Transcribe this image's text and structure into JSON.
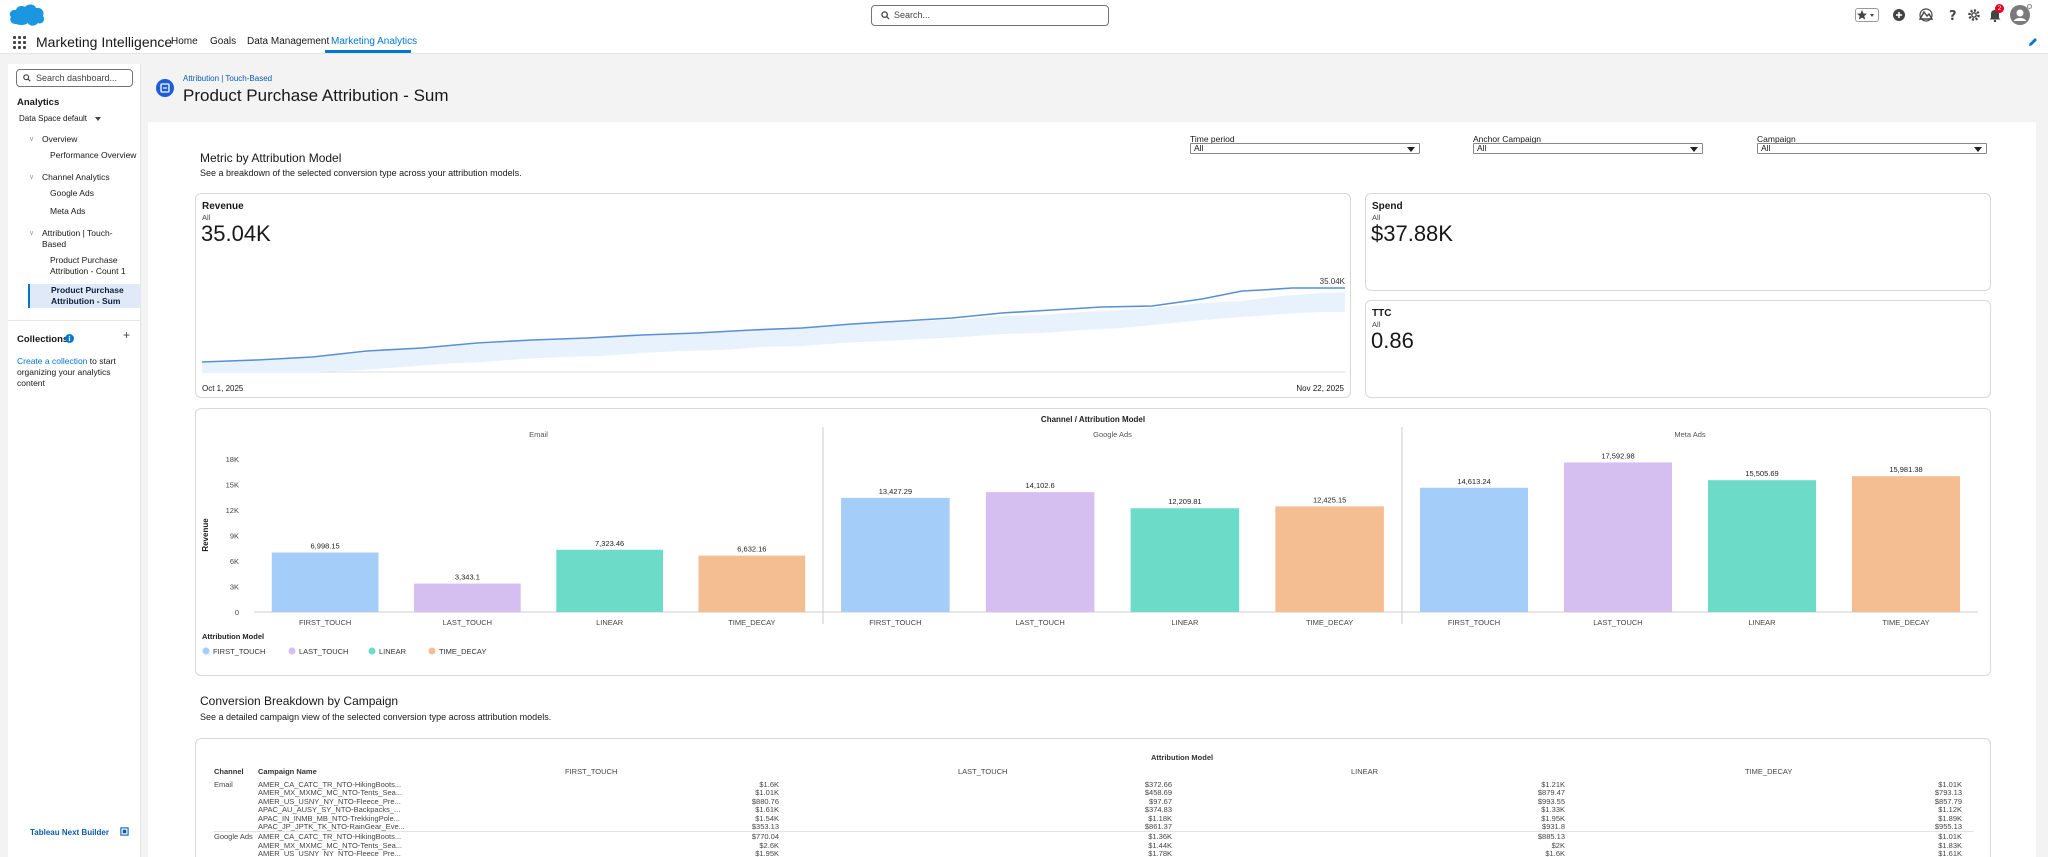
{
  "header": {
    "app_name": "Marketing Intelligence",
    "search_placeholder": "Search...",
    "nav": [
      "Home",
      "Goals",
      "Data Management",
      "Marketing Analytics"
    ],
    "notification_count": "2"
  },
  "sidebar": {
    "search_placeholder": "Search dashboard...",
    "section": "Analytics",
    "data_space_label": "Data Space",
    "data_space_value": "default",
    "groups": [
      {
        "label": "Overview",
        "items": [
          "Performance Overview"
        ]
      },
      {
        "label": "Channel Analytics",
        "items": [
          "Google Ads",
          "Meta Ads"
        ]
      },
      {
        "label": "Attribution | Touch-Based",
        "items": [
          "Product Purchase Attribution - Count 1",
          "Product Purchase Attribution - Sum"
        ]
      }
    ],
    "collections_title": "Collections",
    "collections_link": "Create a collection",
    "collections_text": "to start organizing your analytics content",
    "footer": "Tableau Next Builder"
  },
  "page": {
    "breadcrumb": "Attribution | Touch-Based",
    "title": "Product Purchase Attribution - Sum"
  },
  "metric_section": {
    "title": "Metric by Attribution Model",
    "subtitle": "See a breakdown of the selected conversion type across your attribution models."
  },
  "filters": [
    {
      "label": "Time period",
      "value": "All"
    },
    {
      "label": "Anchor Campaign",
      "value": "All"
    },
    {
      "label": "Campaign",
      "value": "All"
    }
  ],
  "kpis": {
    "revenue": {
      "title": "Revenue",
      "sub": "All",
      "value": "35.04K",
      "end_label": "35.04K",
      "start_date": "Oct 1, 2025",
      "end_date": "Nov 22, 2025"
    },
    "spend": {
      "title": "Spend",
      "sub": "All",
      "value": "$37.88K"
    },
    "ttc": {
      "title": "TTC",
      "sub": "All",
      "value": "0.86"
    }
  },
  "chart_data": {
    "type": "bar",
    "title": "Channel / Attribution Model",
    "ylabel": "Revenue",
    "ylim": [
      0,
      18000
    ],
    "yticks": [
      "18K",
      "15K",
      "12K",
      "9K",
      "6K",
      "3K",
      "0"
    ],
    "legend_title": "Attribution Model",
    "legend": [
      "FIRST_TOUCH",
      "LAST_TOUCH",
      "LINEAR",
      "TIME_DECAY"
    ],
    "colors": {
      "FIRST_TOUCH": "#a5cdfa",
      "LAST_TOUCH": "#d4bff0",
      "LINEAR": "#6cdcc8",
      "TIME_DECAY": "#f4bd92"
    },
    "panels": [
      {
        "name": "Email",
        "categories": [
          "FIRST_TOUCH",
          "LAST_TOUCH",
          "LINEAR",
          "TIME_DECAY"
        ],
        "values": [
          6998.15,
          3343.1,
          7323.46,
          6632.16
        ],
        "labels": [
          "6,998.15",
          "3,343.1",
          "7,323.46",
          "6,632.16"
        ]
      },
      {
        "name": "Google Ads",
        "categories": [
          "FIRST_TOUCH",
          "LAST_TOUCH",
          "LINEAR",
          "TIME_DECAY"
        ],
        "values": [
          13427.29,
          14102.6,
          12209.81,
          12425.15
        ],
        "labels": [
          "13,427.29",
          "14,102.6",
          "12,209.81",
          "12,425.15"
        ]
      },
      {
        "name": "Meta Ads",
        "categories": [
          "FIRST_TOUCH",
          "LAST_TOUCH",
          "LINEAR",
          "TIME_DECAY"
        ],
        "values": [
          14613.24,
          17592.98,
          15505.69,
          15981.38
        ],
        "labels": [
          "14,613.24",
          "17,592.98",
          "15,505.69",
          "15,981.38"
        ]
      }
    ]
  },
  "conversion_section": {
    "title": "Conversion Breakdown by Campaign",
    "subtitle": "See a detailed campaign view of the selected conversion type across attribution models.",
    "group_header": "Attribution Model",
    "col_channel": "Channel",
    "col_campaign": "Campaign Name",
    "models": [
      "FIRST_TOUCH",
      "LAST_TOUCH",
      "LINEAR",
      "TIME_DECAY"
    ],
    "rows": [
      {
        "channel": "Email",
        "campaign": "AMER_CA_CATC_TR_NTO-HikingBoots...",
        "values": [
          "$1.6K",
          "$372.66",
          "$1.21K",
          "$1.01K"
        ]
      },
      {
        "channel": "",
        "campaign": "AMER_MX_MXMC_MC_NTO-Tents_Sea...",
        "values": [
          "$1.01K",
          "$458.69",
          "$879.47",
          "$793.13"
        ]
      },
      {
        "channel": "",
        "campaign": "AMER_US_USNY_NY_NTO-Fleece_Pre...",
        "values": [
          "$880.76",
          "$97.67",
          "$993.55",
          "$857.79"
        ]
      },
      {
        "channel": "",
        "campaign": "APAC_AU_AUSY_SY_NTO-Backpacks_...",
        "values": [
          "$1.61K",
          "$374.83",
          "$1.33K",
          "$1.12K"
        ]
      },
      {
        "channel": "",
        "campaign": "APAC_IN_INMB_MB_NTO-TrekkingPole...",
        "values": [
          "$1.54K",
          "$1.18K",
          "$1.95K",
          "$1.89K"
        ]
      },
      {
        "channel": "",
        "campaign": "APAC_JP_JPTK_TK_NTO-RainGear_Eve...",
        "values": [
          "$353.13",
          "$861.37",
          "$931.8",
          "$955.13"
        ]
      },
      {
        "channel": "Google Ads",
        "campaign": "AMER_CA_CATC_TR_NTO-HikingBoots...",
        "values": [
          "$770.04",
          "$1.36K",
          "$885.13",
          "$1.01K"
        ]
      },
      {
        "channel": "",
        "campaign": "AMER_MX_MXMC_MC_NTO-Tents_Sea...",
        "values": [
          "$2.6K",
          "$1.44K",
          "$2K",
          "$1.83K"
        ]
      },
      {
        "channel": "",
        "campaign": "AMER_US_USNY_NY_NTO-Fleece_Pre...",
        "values": [
          "$1.95K",
          "$1.78K",
          "$1.6K",
          "$1.61K"
        ]
      }
    ]
  }
}
